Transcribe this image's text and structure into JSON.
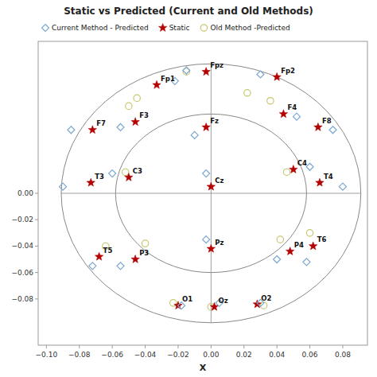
{
  "chart_data": {
    "type": "scatter",
    "title": "Static vs Predicted (Current and Old Methods)",
    "xlabel": "X",
    "xlim": [
      -0.105,
      0.095
    ],
    "ylim": [
      -0.115,
      0.115
    ],
    "xticks": [
      {
        "value": -0.1,
        "label": "−0.10"
      },
      {
        "value": -0.08,
        "label": "−0.08"
      },
      {
        "value": -0.06,
        "label": "−0.06"
      },
      {
        "value": -0.04,
        "label": "−0.04"
      },
      {
        "value": -0.02,
        "label": "−0.02"
      },
      {
        "value": 0.0,
        "label": "0.00"
      },
      {
        "value": 0.02,
        "label": "0.02"
      },
      {
        "value": 0.04,
        "label": "0.04"
      },
      {
        "value": 0.06,
        "label": "0.06"
      },
      {
        "value": 0.08,
        "label": "0.08"
      }
    ],
    "yticks": [
      {
        "value": -0.08,
        "label": "−0.08"
      },
      {
        "value": -0.06,
        "label": "−0.06"
      },
      {
        "value": -0.04,
        "label": "−0.04"
      },
      {
        "value": -0.02,
        "label": "−0.02"
      },
      {
        "value": 0.0,
        "label": "0.00"
      }
    ],
    "grid": false,
    "legend": "upper left",
    "point_labels": [
      "Fp1",
      "Fpz",
      "Fp2",
      "F7",
      "F3",
      "Fz",
      "F4",
      "F8",
      "T3",
      "C3",
      "Cz",
      "C4",
      "T4",
      "T5",
      "P3",
      "Pz",
      "P4",
      "T6",
      "O1",
      "Oz",
      "O2"
    ],
    "ellipses": [
      {
        "cx": 0.0,
        "cy": 0.0,
        "rx": 0.091,
        "ry": 0.098,
        "color": "#888888"
      },
      {
        "cx": 0.0,
        "cy": 0.0,
        "rx": 0.058,
        "ry": 0.06,
        "color": "#888888"
      }
    ],
    "series": [
      {
        "name": "Current Method - Predicted",
        "color": "#7BA7D0",
        "marker": "diamond",
        "x": [
          -0.022,
          -0.015,
          0.03,
          -0.085,
          -0.055,
          -0.01,
          0.052,
          0.074,
          -0.09,
          -0.06,
          -0.003,
          0.06,
          0.08,
          -0.072,
          -0.055,
          -0.003,
          0.04,
          0.058,
          -0.018,
          0.005,
          0.03
        ],
        "values": [
          0.085,
          0.093,
          0.09,
          0.048,
          0.05,
          0.044,
          0.058,
          0.048,
          0.005,
          0.015,
          0.015,
          0.02,
          0.005,
          -0.055,
          -0.055,
          -0.035,
          -0.05,
          -0.052,
          -0.085,
          -0.083,
          -0.083
        ]
      },
      {
        "name": "Static",
        "color": "#B30000",
        "marker": "star",
        "x": [
          -0.033,
          -0.003,
          0.04,
          -0.072,
          -0.046,
          -0.003,
          0.044,
          0.065,
          -0.073,
          -0.05,
          0.0,
          0.05,
          0.066,
          -0.068,
          -0.046,
          0.0,
          0.048,
          0.062,
          -0.02,
          0.002,
          0.028
        ],
        "values": [
          0.082,
          0.092,
          0.088,
          0.048,
          0.054,
          0.05,
          0.06,
          0.05,
          0.008,
          0.012,
          0.005,
          0.018,
          0.008,
          -0.048,
          -0.05,
          -0.042,
          -0.044,
          -0.04,
          -0.085,
          -0.086,
          -0.084
        ]
      },
      {
        "name": "Old Method -Predicted",
        "color": "#C8C870",
        "marker": "circle",
        "x": [
          -0.045,
          -0.015,
          0.022,
          null,
          -0.05,
          null,
          0.036,
          null,
          null,
          -0.052,
          null,
          0.046,
          null,
          -0.064,
          -0.04,
          null,
          0.042,
          0.06,
          -0.023,
          0.0,
          0.032
        ],
        "values": [
          0.072,
          0.092,
          0.076,
          null,
          0.066,
          null,
          0.07,
          null,
          null,
          0.016,
          null,
          0.016,
          null,
          -0.04,
          -0.038,
          null,
          -0.035,
          -0.03,
          -0.083,
          -0.086,
          -0.085
        ]
      }
    ]
  }
}
